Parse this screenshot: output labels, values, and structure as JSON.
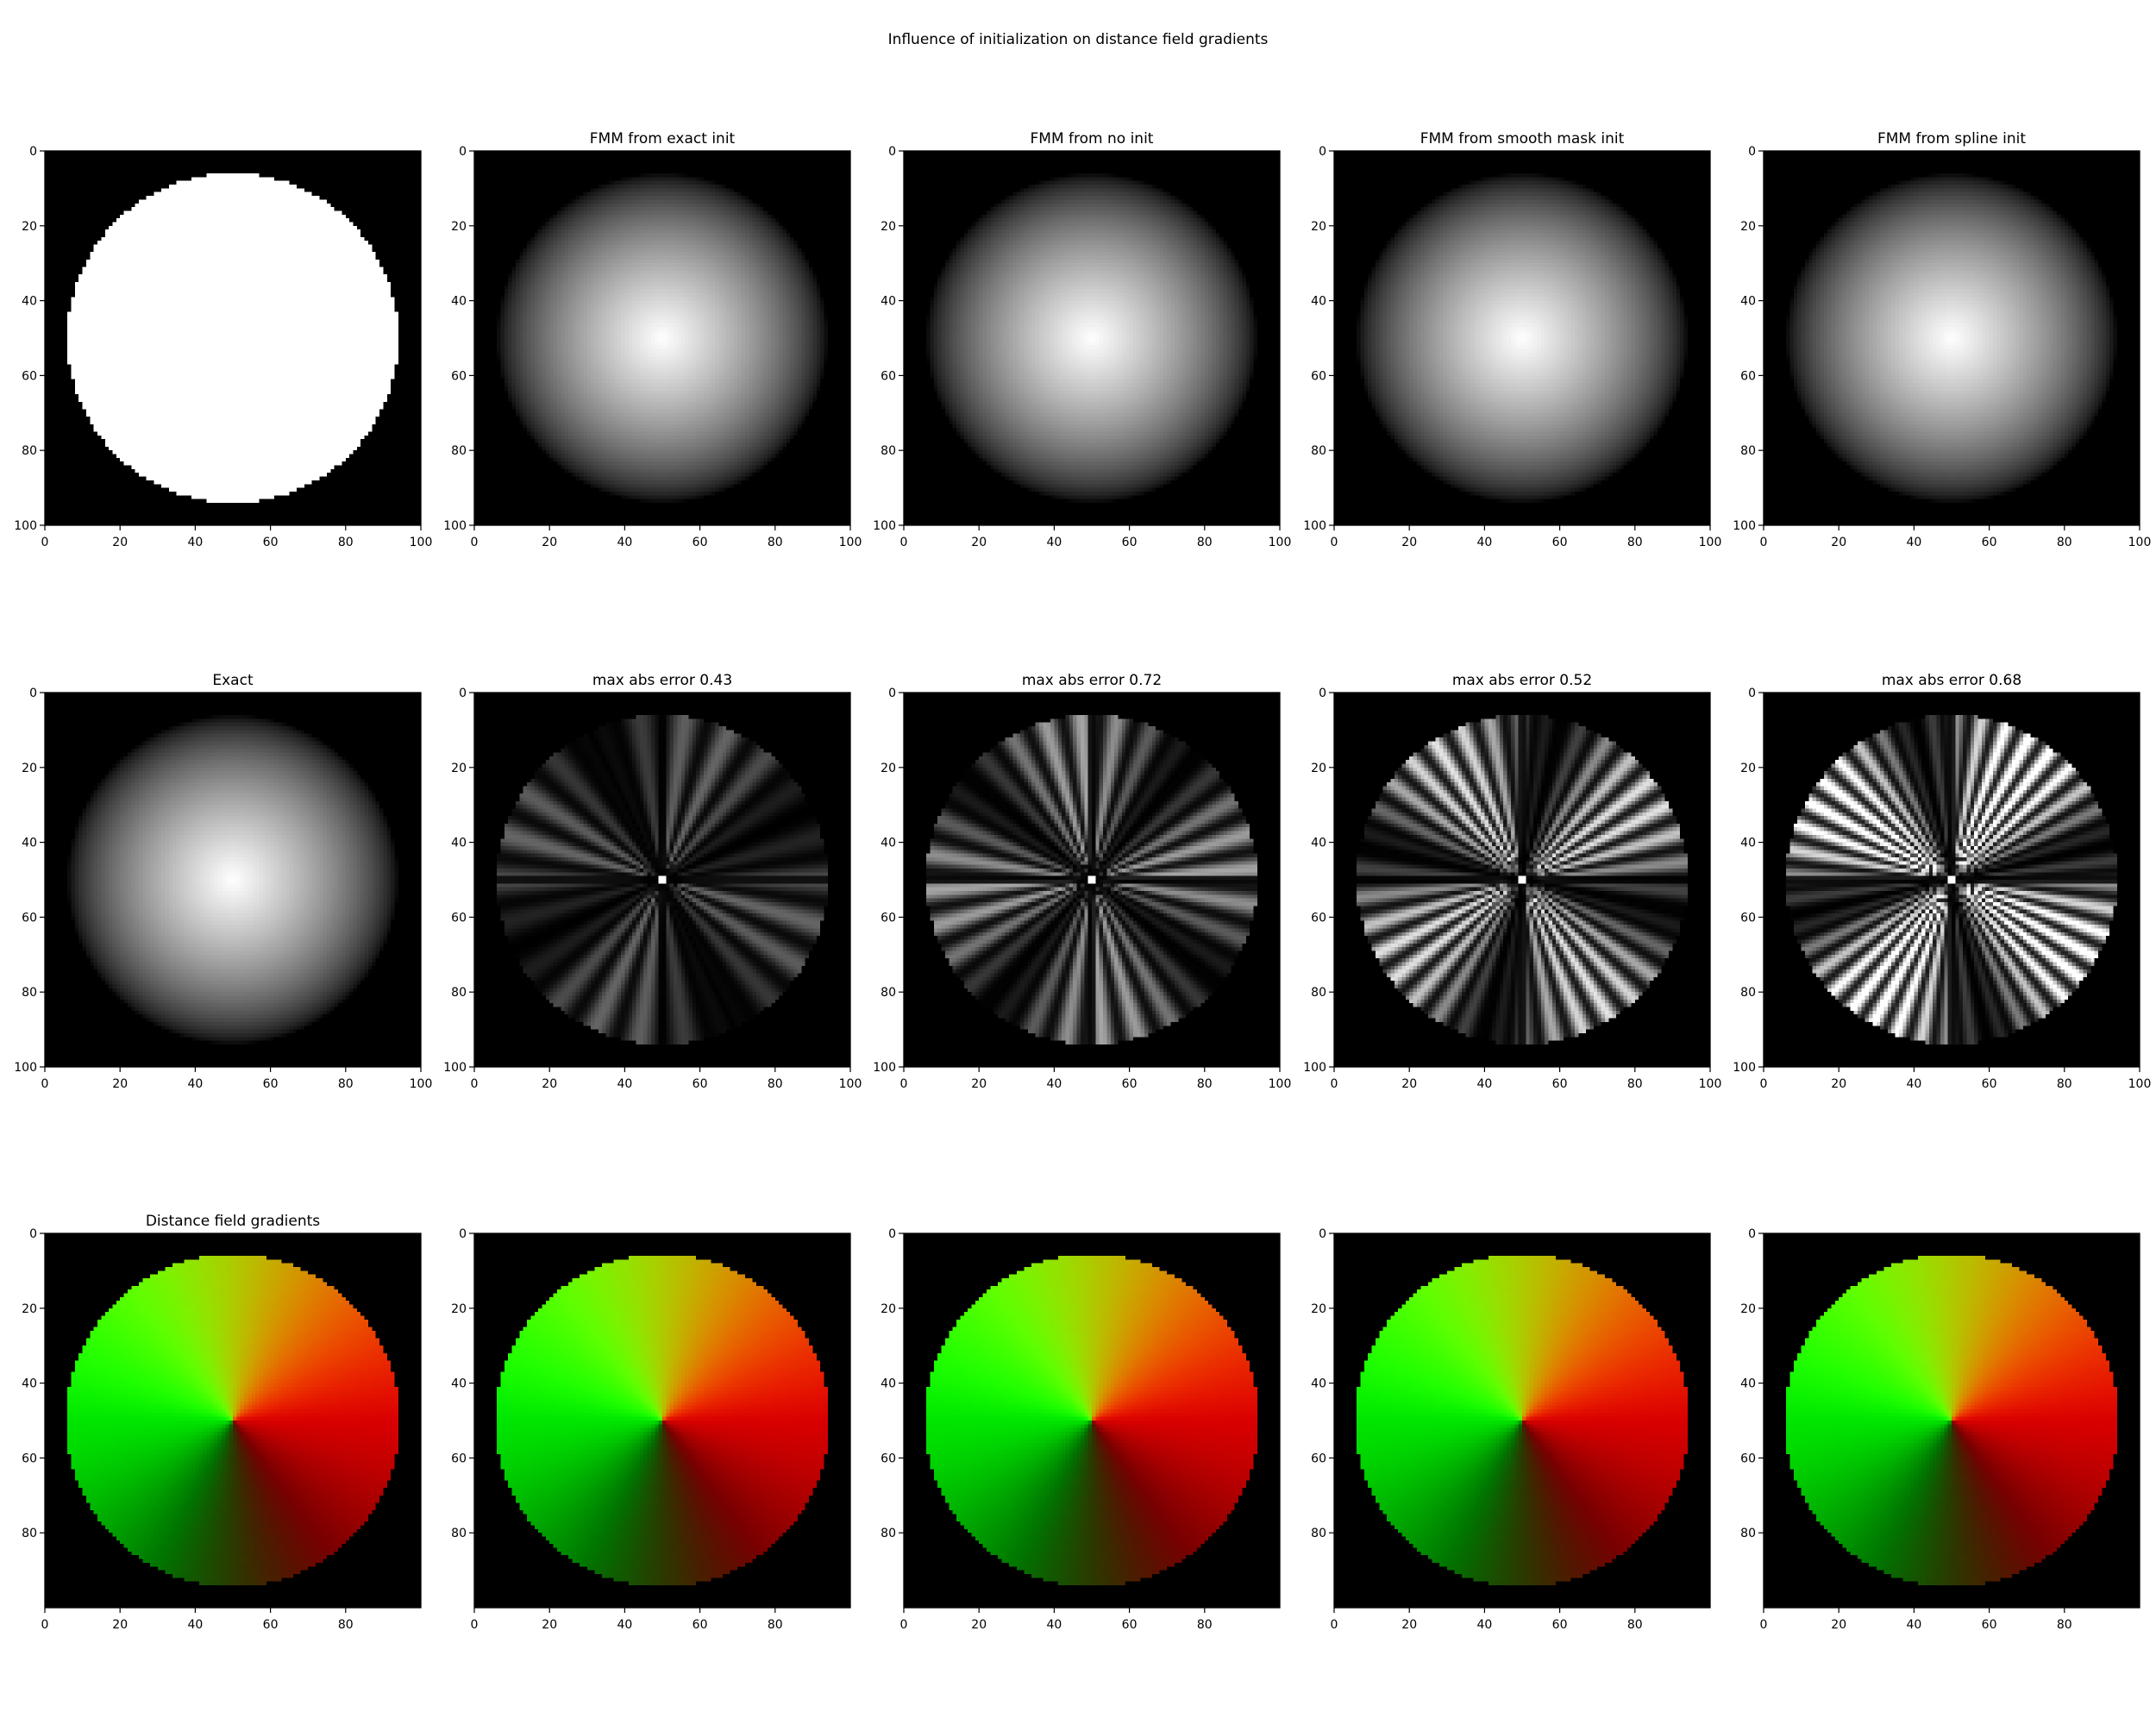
{
  "title": "Influence of initialization on distance field gradients",
  "chart_data": {
    "type": "heatmap",
    "grid": false,
    "rows": [
      {
        "kind": "field",
        "xticks": [
          0,
          20,
          40,
          60,
          80,
          100
        ],
        "yticks": [
          0,
          20,
          40,
          60,
          80,
          100
        ],
        "panels": [
          {
            "title": "",
            "render": "mask"
          },
          {
            "title": "FMM from exact init",
            "render": "distance"
          },
          {
            "title": "FMM from no init",
            "render": "distance"
          },
          {
            "title": "FMM from smooth mask init",
            "render": "distance"
          },
          {
            "title": "FMM from spline init",
            "render": "distance"
          }
        ]
      },
      {
        "kind": "error",
        "xticks": [
          0,
          20,
          40,
          60,
          80,
          100
        ],
        "yticks": [
          0,
          20,
          40,
          60,
          80,
          100
        ],
        "panels": [
          {
            "title": "Exact",
            "render": "distance"
          },
          {
            "title": "max abs error 0.43",
            "render": "error",
            "max_abs_error": 0.43
          },
          {
            "title": "max abs error 0.72",
            "render": "error",
            "max_abs_error": 0.72
          },
          {
            "title": "max abs error 0.52",
            "render": "error",
            "max_abs_error": 0.52
          },
          {
            "title": "max abs error 0.68",
            "render": "error",
            "max_abs_error": 0.68
          }
        ]
      },
      {
        "kind": "gradient",
        "xticks": [
          0,
          20,
          40,
          60,
          80
        ],
        "yticks": [
          0,
          20,
          40,
          60,
          80
        ],
        "panels": [
          {
            "title": "Distance field gradients",
            "render": "gradient"
          },
          {
            "title": "",
            "render": "gradient"
          },
          {
            "title": "",
            "render": "gradient"
          },
          {
            "title": "",
            "render": "gradient"
          },
          {
            "title": "",
            "render": "gradient"
          }
        ]
      }
    ],
    "extent": [
      0,
      100
    ],
    "circle": {
      "center": [
        50,
        50
      ],
      "radius": 44
    },
    "colors": {
      "background": "#000000",
      "mask": "#ffffff",
      "axis": "#000000"
    }
  }
}
